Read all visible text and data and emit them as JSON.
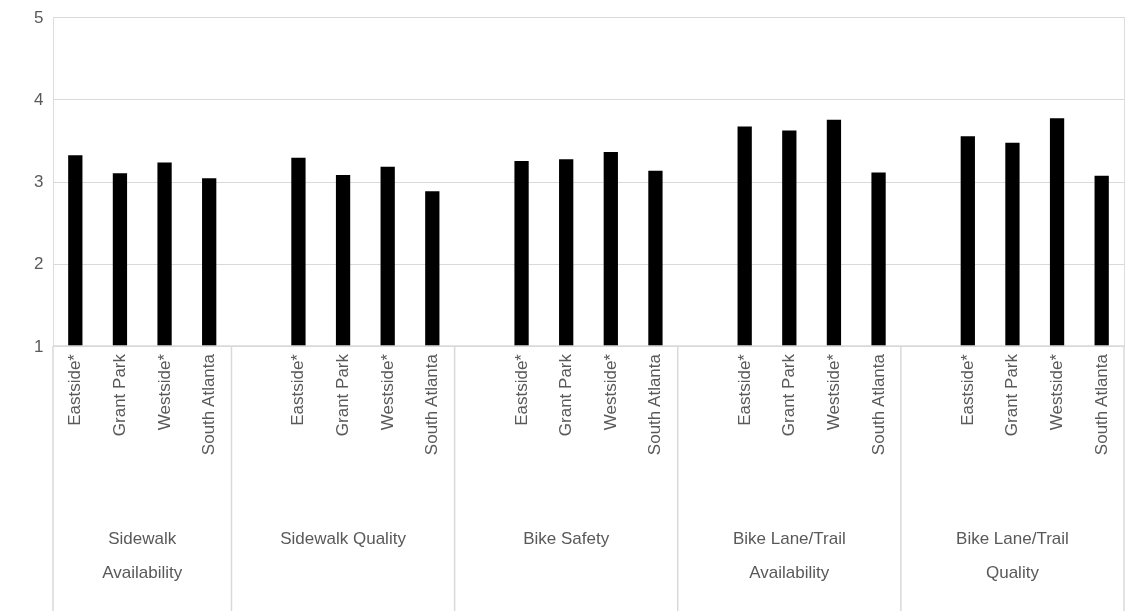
{
  "chart_data": {
    "type": "bar",
    "categories": [
      "Eastside*",
      "Grant Park",
      "Westside*",
      "South Atlanta",
      null,
      "Eastside*",
      "Grant Park",
      "Westside*",
      "South Atlanta",
      null,
      "Eastside*",
      "Grant Park",
      "Westside*",
      "South Atlanta",
      null,
      "Eastside*",
      "Grant Park",
      "Westside*",
      "South Atlanta",
      null,
      "Eastside*",
      "Grant Park",
      "Westside*",
      "South Atlanta"
    ],
    "values": [
      3.32,
      3.1,
      3.23,
      3.04,
      null,
      3.29,
      3.08,
      3.18,
      2.88,
      null,
      3.25,
      3.27,
      3.36,
      3.13,
      null,
      3.67,
      3.62,
      3.75,
      3.11,
      null,
      3.55,
      3.47,
      3.77,
      3.07
    ],
    "color": "#000000",
    "ylim": [
      1,
      5
    ],
    "yticks": [
      1,
      2,
      3,
      4,
      5
    ],
    "grid": "y",
    "annotations": [
      "Sidewalk Availability",
      "Sidewalk Quality",
      "Bike Safety",
      "Bike Lane/Trail Availability",
      "Bike Lane/Trail Quality"
    ]
  }
}
